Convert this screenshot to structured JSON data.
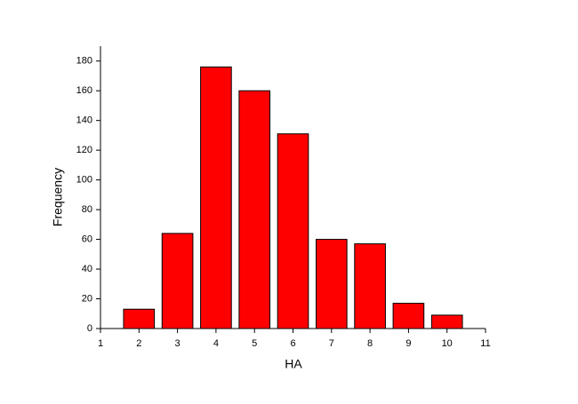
{
  "chart_data": {
    "type": "bar",
    "xlabel": "HA",
    "ylabel": "Frequency",
    "x": [
      2,
      3,
      4,
      5,
      6,
      7,
      8,
      9,
      10
    ],
    "values": [
      13,
      64,
      176,
      160,
      131,
      60,
      57,
      17,
      9
    ],
    "color": "#ff0000",
    "xlim": [
      1,
      11
    ],
    "xticks": [
      1,
      2,
      3,
      4,
      5,
      6,
      7,
      8,
      9,
      10,
      11
    ],
    "ylim": [
      0,
      190
    ],
    "yticks": [
      0,
      20,
      40,
      60,
      80,
      100,
      120,
      140,
      160,
      180
    ]
  }
}
